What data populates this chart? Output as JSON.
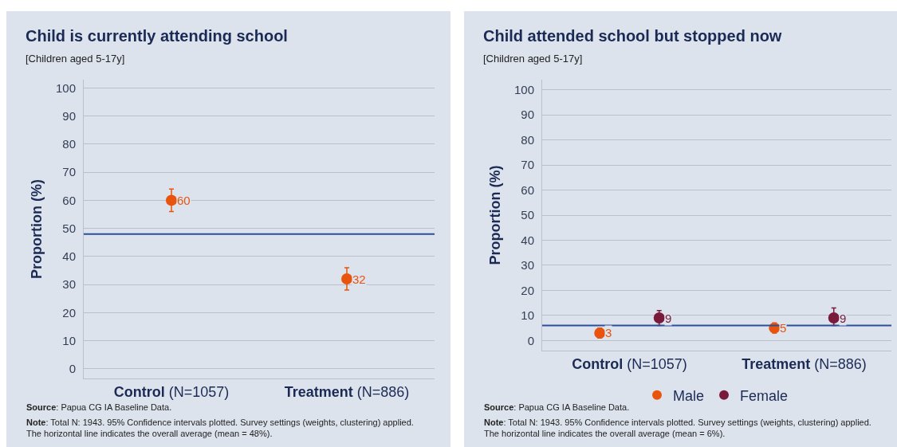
{
  "chart_data": [
    {
      "type": "scatter",
      "title": "Child is currently attending school",
      "subtitle": "[Children aged 5-17y]",
      "ylabel": "Proportion (%)",
      "categories": [
        "Control (N=1057)",
        "Treatment (N=886)"
      ],
      "series": [
        {
          "color": "#e8540e",
          "values": [
            60,
            32
          ],
          "errors": [
            [
              56,
              64
            ],
            [
              28,
              36
            ]
          ]
        }
      ],
      "ylim": [
        -3.5,
        103
      ],
      "yticks": [
        0,
        10,
        20,
        30,
        40,
        50,
        60,
        70,
        80,
        90,
        100
      ],
      "grid": "y",
      "marker": "circle",
      "data_labels": true,
      "legend": false,
      "ref_lines": [
        {
          "axis": "y",
          "value": 48,
          "color": "#2b4f9b"
        }
      ],
      "annotations": [
        "Source: Papua CG IA Baseline Data.",
        "Note: Total N: 1943. 95% Confidence intervals plotted. Survey settings (weights, clustering) applied.\nThe horizontal line indicates the overall average (mean = 48%)."
      ]
    },
    {
      "type": "scatter",
      "title": "Child attended school but stopped now",
      "subtitle": "[Children aged 5-17y]",
      "ylabel": "Proportion (%)",
      "categories": [
        "Control (N=1057)",
        "Treatment (N=886)"
      ],
      "series": [
        {
          "name": "Male",
          "color": "#e8540e",
          "values": [
            3,
            5
          ],
          "errors": [
            [
              1,
              5
            ],
            [
              3,
              7
            ]
          ]
        },
        {
          "name": "Female",
          "color": "#7a1a3a",
          "values": [
            9,
            9
          ],
          "errors": [
            [
              6,
              12
            ],
            [
              6,
              13
            ]
          ]
        }
      ],
      "ylim": [
        -4,
        104
      ],
      "yticks": [
        0,
        10,
        20,
        30,
        40,
        50,
        60,
        70,
        80,
        90,
        100
      ],
      "grid": "y",
      "marker": "circle",
      "data_labels": true,
      "legend": "bottom",
      "ref_lines": [
        {
          "axis": "y",
          "value": 6,
          "color": "#2b4f9b"
        }
      ],
      "annotations": [
        "Source: Papua CG IA Baseline Data.",
        "Note: Total N: 1943. 95% Confidence intervals plotted. Survey settings (weights, clustering) applied.\nThe horizontal line indicates the overall average (mean = 6%)."
      ]
    }
  ]
}
